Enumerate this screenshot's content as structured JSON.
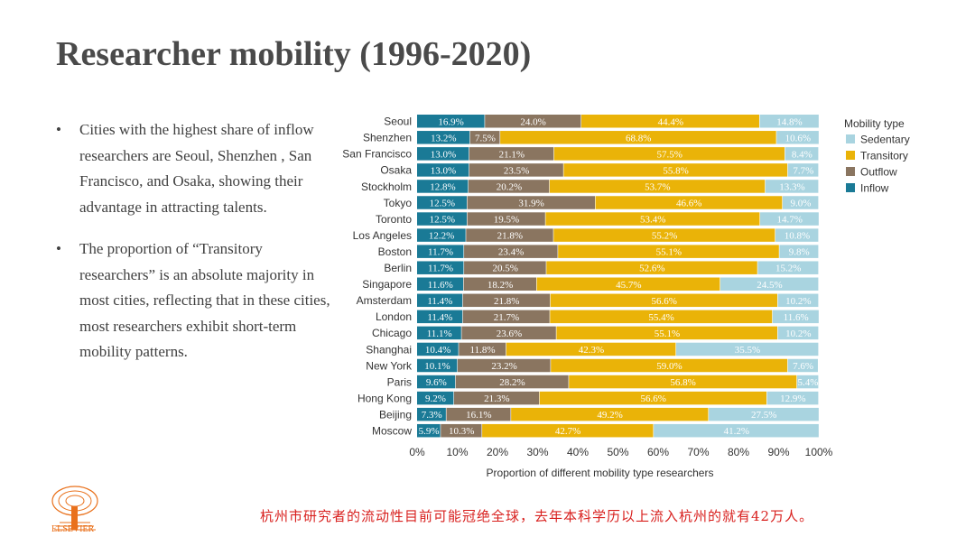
{
  "slide": {
    "title": "Researcher mobility (1996-2020)",
    "bullets": [
      "Cities with the highest share of inflow researchers are Seoul, Shenzhen , San Francisco, and Osaka, showing their advantage in attracting talents.",
      "The proportion of “Transitory researchers” is an absolute majority in most cities, reflecting that in these cities, most researchers exhibit short-term mobility patterns."
    ],
    "bullet_symbol": "•",
    "logo_text": "ELSEVIER",
    "footnote": "杭州市研究者的流动性目前可能冠绝全球，去年本科学历以上流入杭州的就有42万人。"
  },
  "colors": {
    "inflow": "#1a7a96",
    "outflow": "#8a7560",
    "transitory": "#eab308",
    "sedentary": "#a9d4e0",
    "text": "#404040",
    "footnote": "#d8201e"
  },
  "chart_data": {
    "type": "bar",
    "orientation": "horizontal",
    "stacked": true,
    "title": "",
    "xlabel": "Proportion of different mobility type researchers",
    "ylabel": "",
    "xlim": [
      0,
      100
    ],
    "xticks": [
      "0%",
      "10%",
      "20%",
      "30%",
      "40%",
      "50%",
      "60%",
      "70%",
      "80%",
      "90%",
      "100%"
    ],
    "legend_title": "Mobility type",
    "legend_position": "right",
    "legend_order": [
      "Sedentary",
      "Transitory",
      "Outflow",
      "Inflow"
    ],
    "categories": [
      "Seoul",
      "Shenzhen",
      "San Francisco",
      "Osaka",
      "Stockholm",
      "Tokyo",
      "Toronto",
      "Los Angeles",
      "Boston",
      "Berlin",
      "Singapore",
      "Amsterdam",
      "London",
      "Chicago",
      "Shanghai",
      "New York",
      "Paris",
      "Hong Kong",
      "Beijing",
      "Moscow"
    ],
    "series": [
      {
        "name": "Inflow",
        "color": "#1a7a96",
        "values": [
          16.9,
          13.2,
          13.0,
          13.0,
          12.8,
          12.5,
          12.5,
          12.2,
          11.7,
          11.7,
          11.6,
          11.4,
          11.4,
          11.1,
          10.4,
          10.1,
          9.6,
          9.2,
          7.3,
          5.9
        ]
      },
      {
        "name": "Outflow",
        "color": "#8a7560",
        "values": [
          24.0,
          7.5,
          21.1,
          23.5,
          20.2,
          31.9,
          19.5,
          21.8,
          23.4,
          20.5,
          18.2,
          21.8,
          21.7,
          23.6,
          11.8,
          23.2,
          28.2,
          21.3,
          16.1,
          10.3
        ]
      },
      {
        "name": "Transitory",
        "color": "#eab308",
        "values": [
          44.4,
          68.8,
          57.5,
          55.8,
          53.7,
          46.6,
          53.4,
          55.2,
          55.1,
          52.6,
          45.7,
          56.6,
          55.4,
          55.1,
          42.3,
          59.0,
          56.8,
          56.6,
          49.2,
          42.7
        ]
      },
      {
        "name": "Sedentary",
        "color": "#a9d4e0",
        "values": [
          14.8,
          10.6,
          8.4,
          7.7,
          13.3,
          9.0,
          14.7,
          10.8,
          9.8,
          15.2,
          24.5,
          10.2,
          11.6,
          10.2,
          35.5,
          7.6,
          5.4,
          12.9,
          27.5,
          41.2
        ]
      }
    ]
  }
}
